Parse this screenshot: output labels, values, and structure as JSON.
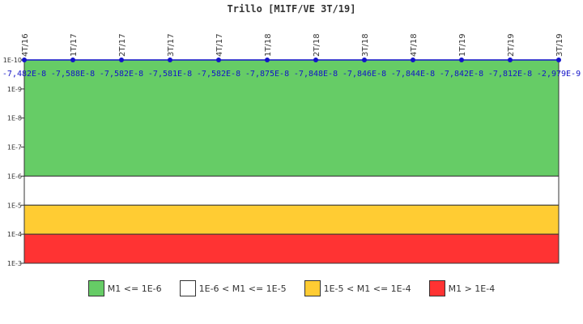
{
  "chart_data": {
    "type": "line",
    "title": "Trillo [M1TF/VE 3T/19]",
    "y_scale": "log",
    "y_direction": "inverted",
    "y_ticks": [
      "1E-10",
      "1E-9",
      "1E-8",
      "1E-7",
      "1E-6",
      "1E-5",
      "1E-4",
      "1E-3"
    ],
    "ylim": [
      1e-10,
      0.001
    ],
    "categories": [
      "4T/16",
      "1T/17",
      "2T/17",
      "3T/17",
      "4T/17",
      "1T/18",
      "2T/18",
      "3T/18",
      "4T/18",
      "1T/19",
      "2T/19",
      "3T/19"
    ],
    "values": [
      -7.482e-08,
      -7.588e-08,
      -7.582e-08,
      -7.581e-08,
      -7.582e-08,
      -7.875e-08,
      -7.848e-08,
      -7.846e-08,
      -7.844e-08,
      -7.842e-08,
      -7.812e-08,
      -2.979e-09
    ],
    "value_labels": [
      "-7,482E-8",
      "-7,588E-8",
      "-7,582E-8",
      "-7,581E-8",
      "-7,582E-8",
      "-7,875E-8",
      "-7,848E-8",
      "-7,846E-8",
      "-7,844E-8",
      "-7,842E-8",
      "-7,812E-8",
      "-2,979E-9"
    ],
    "series_color": "#1414c8",
    "bands": [
      {
        "from": 1e-10,
        "to": 1e-06,
        "color": "#66cc66",
        "label": "M1 <= 1E-6"
      },
      {
        "from": 1e-06,
        "to": 1e-05,
        "color": "#ffffff",
        "label": "1E-6 < M1 <= 1E-5"
      },
      {
        "from": 1e-05,
        "to": 0.0001,
        "color": "#ffcc33",
        "label": "1E-5 < M1 <= 1E-4"
      },
      {
        "from": 0.0001,
        "to": 0.001,
        "color": "#ff3333",
        "label": "M1 > 1E-4"
      }
    ],
    "grid": false
  }
}
